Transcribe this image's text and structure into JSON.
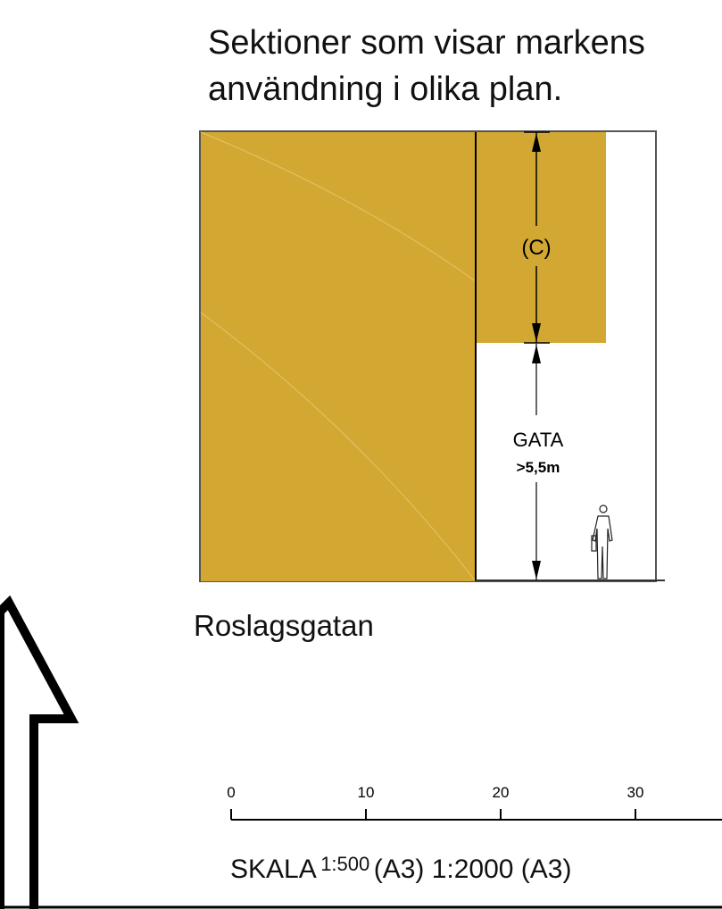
{
  "heading": {
    "line1": "Sektioner som visar markens",
    "line2": "användning i olika plan."
  },
  "section": {
    "upper_label": "(C)",
    "street_label": "GATA",
    "street_height": ">5,5m",
    "fill_color": "#D3A832"
  },
  "street_name": "Roslagsgatan",
  "scale_bar": {
    "ticks": [
      "0",
      "10",
      "20",
      "30"
    ],
    "label_prefix": "SKALA",
    "ratio_small": "1:500",
    "label_mid": "(A3) 1:2000 (A3)"
  },
  "icons": {
    "north_arrow": "north-arrow-icon",
    "pedestrian": "pedestrian-icon"
  }
}
